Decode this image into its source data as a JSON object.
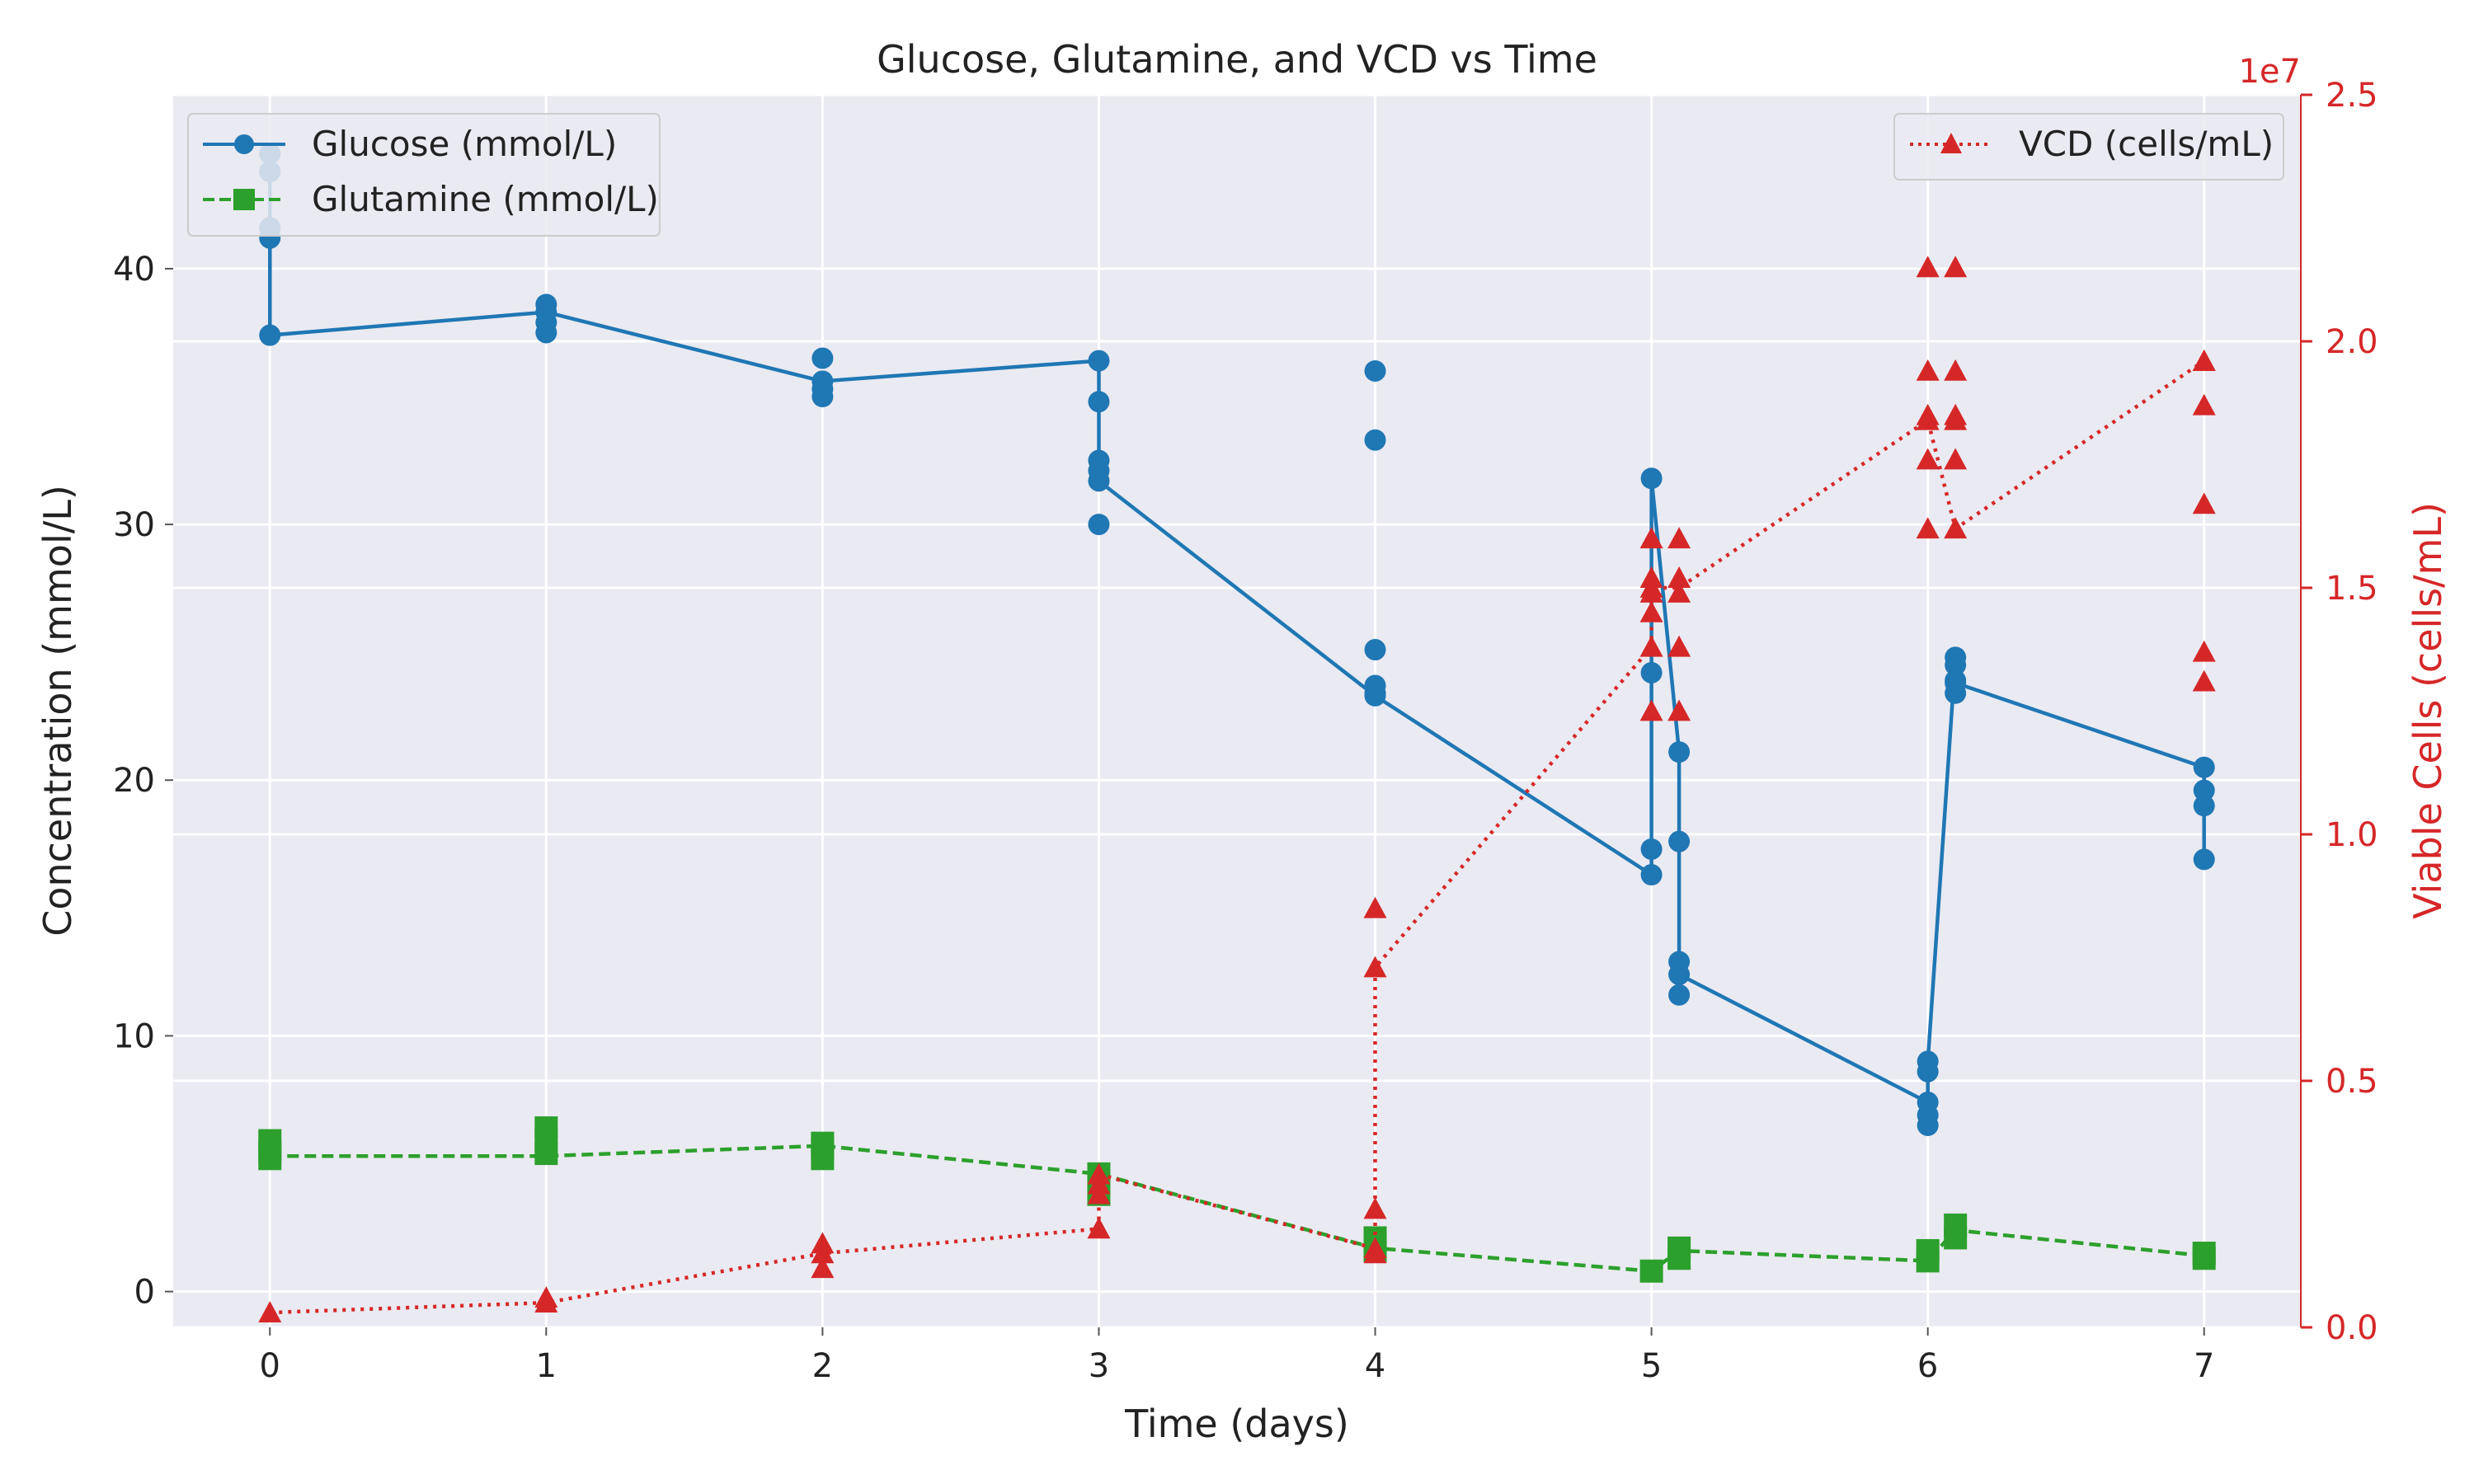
{
  "chart_data": {
    "type": "line",
    "title": "Glucose, Glutamine, and VCD vs Time",
    "xlabel": "Time (days)",
    "ylabel_left": "Concentration (mmol/L)",
    "ylabel_right": "Viable Cells (cells/mL)",
    "right_axis_offset_text": "1e7",
    "xlim": [
      -0.35,
      7.35
    ],
    "ylim_left": [
      -1.4,
      46.8
    ],
    "ylim_right": [
      0,
      2.5
    ],
    "x_ticks": [
      0,
      1,
      2,
      3,
      4,
      5,
      6,
      7
    ],
    "y_left_ticks": [
      0,
      10,
      20,
      30,
      40
    ],
    "y_right_ticks": [
      0.0,
      0.5,
      1.0,
      1.5,
      2.0,
      2.5
    ],
    "y_right_tick_labels": [
      "0.0",
      "0.5",
      "1.0",
      "1.5",
      "2.0",
      "2.5"
    ],
    "grid": true,
    "series": [
      {
        "name": "Glucose (mmol/L)",
        "axis": "left",
        "color": "#1f77b4",
        "line_style": "solid",
        "marker": "circle",
        "x": [
          0,
          0,
          0,
          0,
          0,
          1,
          1,
          1,
          1,
          2,
          2,
          2,
          2,
          3,
          3,
          3,
          3,
          3,
          3,
          4,
          4,
          4,
          4,
          4,
          4,
          5,
          5,
          5,
          5,
          5.1,
          5.1,
          5.1,
          5.1,
          5.1,
          6,
          6,
          6,
          6,
          6,
          6.1,
          6.1,
          6.1,
          6.1,
          6.1,
          7,
          7,
          7,
          7
        ],
        "y": [
          44.5,
          43.8,
          41.6,
          41.2,
          37.4,
          38.6,
          38.3,
          37.9,
          37.5,
          36.5,
          35.6,
          35.3,
          35.0,
          36.4,
          34.8,
          32.5,
          32.1,
          31.7,
          30.0,
          36.0,
          33.3,
          25.1,
          23.7,
          23.4,
          23.3,
          31.8,
          24.2,
          17.3,
          16.3,
          21.1,
          17.6,
          12.9,
          12.4,
          11.6,
          9.0,
          8.6,
          7.4,
          6.9,
          6.5,
          24.8,
          24.5,
          23.9,
          23.4,
          23.8,
          20.5,
          19.6,
          19.0,
          16.9
        ],
        "line_points": [
          [
            0,
            44.5
          ],
          [
            0,
            37.4
          ],
          [
            1,
            38.3
          ],
          [
            2,
            35.6
          ],
          [
            3,
            36.4
          ],
          [
            3,
            31.7
          ],
          [
            4,
            23.3
          ],
          [
            5,
            16.3
          ],
          [
            5,
            24.2
          ],
          [
            5,
            31.8
          ],
          [
            5.1,
            21.1
          ],
          [
            5.1,
            12.4
          ],
          [
            6,
            7.4
          ],
          [
            6,
            9.0
          ],
          [
            6.1,
            24.8
          ],
          [
            6.1,
            23.8
          ],
          [
            7,
            20.5
          ],
          [
            7,
            16.9
          ]
        ]
      },
      {
        "name": "Glutamine (mmol/L)",
        "axis": "left",
        "color": "#2ca02c",
        "line_style": "dashed",
        "marker": "square",
        "x": [
          0,
          0,
          0,
          1,
          1,
          1,
          2,
          2,
          2,
          3,
          3,
          3,
          4,
          4,
          4,
          5,
          5.1,
          5.1,
          6,
          6,
          6.1,
          6.1,
          7,
          7
        ],
        "y": [
          5.9,
          5.5,
          5.2,
          6.4,
          5.9,
          5.4,
          5.8,
          5.6,
          5.2,
          4.6,
          4.3,
          3.8,
          2.1,
          1.8,
          1.6,
          0.8,
          1.7,
          1.3,
          1.6,
          1.2,
          2.6,
          2.1,
          1.5,
          1.3
        ],
        "line_points": [
          [
            0,
            5.3
          ],
          [
            1,
            5.3
          ],
          [
            2,
            5.7
          ],
          [
            3,
            4.6
          ],
          [
            4,
            1.7
          ],
          [
            5,
            0.8
          ],
          [
            5.1,
            1.6
          ],
          [
            6,
            1.2
          ],
          [
            6.1,
            2.4
          ],
          [
            7,
            1.4
          ]
        ]
      },
      {
        "name": "VCD (cells/mL)",
        "axis": "right",
        "color": "#d62728",
        "line_style": "dotted",
        "marker": "triangle",
        "x": [
          0,
          1,
          1,
          2,
          2,
          2,
          3,
          3,
          3,
          3,
          4,
          4,
          4,
          4,
          4,
          5,
          5,
          5,
          5,
          5,
          5,
          5,
          5.1,
          5.1,
          5.1,
          5.1,
          5.1,
          6,
          6,
          6,
          6,
          6,
          6,
          6.1,
          6.1,
          6.1,
          6.1,
          6.1,
          6.1,
          7,
          7,
          7,
          7,
          7,
          7
        ],
        "y": [
          0.03,
          0.06,
          0.05,
          0.17,
          0.15,
          0.12,
          0.31,
          0.29,
          0.27,
          0.2,
          0.85,
          0.73,
          0.24,
          0.16,
          0.15,
          1.6,
          1.52,
          1.49,
          1.45,
          1.38,
          1.25,
          1.5,
          1.6,
          1.52,
          1.49,
          1.38,
          1.25,
          2.15,
          1.94,
          1.85,
          1.76,
          1.62,
          1.84,
          2.15,
          1.94,
          1.85,
          1.84,
          1.76,
          1.62,
          1.96,
          1.87,
          1.67,
          1.37,
          1.31,
          1.96
        ],
        "line_points": [
          [
            0,
            0.03
          ],
          [
            1,
            0.05
          ],
          [
            2,
            0.15
          ],
          [
            3,
            0.2
          ],
          [
            3,
            0.31
          ],
          [
            4,
            0.16
          ],
          [
            4,
            0.73
          ],
          [
            5,
            1.38
          ],
          [
            5,
            1.5
          ],
          [
            5.1,
            1.5
          ],
          [
            6,
            1.84
          ],
          [
            6.1,
            1.62
          ],
          [
            7,
            1.96
          ]
        ]
      }
    ],
    "legends": [
      {
        "placement": "top-left",
        "entries": [
          "Glucose (mmol/L)",
          "Glutamine (mmol/L)"
        ]
      },
      {
        "placement": "top-right",
        "entries": [
          "VCD (cells/mL)"
        ]
      }
    ]
  }
}
